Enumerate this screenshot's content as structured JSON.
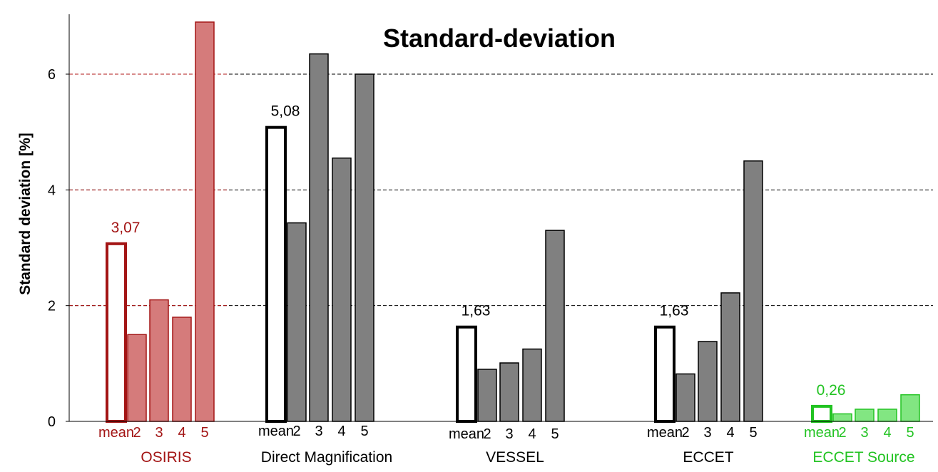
{
  "chart_data": {
    "type": "bar",
    "title": "Standard-deviation",
    "ylabel": "Standard deviation [%]",
    "xlabel": "",
    "ylim": [
      0,
      7
    ],
    "yticks": [
      0,
      2,
      4,
      6
    ],
    "grid": "horizontal dashed at 2, 4, 6",
    "categories": [
      "mean",
      "2",
      "3",
      "4",
      "5"
    ],
    "groups": [
      {
        "name": "OSIRIS",
        "color": "#a31515",
        "fill": "#d57b7b",
        "values": [
          3.07,
          1.5,
          2.1,
          1.8,
          6.9
        ],
        "mean_label": "3,07"
      },
      {
        "name": "Direct Magnification",
        "color": "#000000",
        "fill": "#808080",
        "values": [
          5.08,
          3.43,
          6.35,
          4.55,
          6.0
        ],
        "mean_label": "5,08"
      },
      {
        "name": "VESSEL",
        "color": "#000000",
        "fill": "#808080",
        "values": [
          1.63,
          0.9,
          1.01,
          1.25,
          3.3
        ],
        "mean_label": "1,63"
      },
      {
        "name": "ECCET",
        "color": "#000000",
        "fill": "#808080",
        "values": [
          1.63,
          0.82,
          1.38,
          2.22,
          4.5
        ],
        "mean_label": "1,63"
      },
      {
        "name": "ECCET Source",
        "color": "#22c322",
        "fill": "#82e682",
        "values": [
          0.26,
          0.13,
          0.21,
          0.21,
          0.46
        ],
        "mean_label": "0,26"
      }
    ]
  }
}
